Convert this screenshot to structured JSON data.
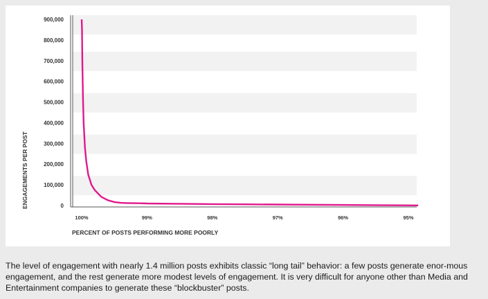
{
  "chart_data": {
    "type": "line",
    "title": "",
    "xlabel": "PERCENT OF POSTS PERFORMING MORE POORLY",
    "ylabel": "ENGAGEMENTS PER POST",
    "x_ticks": [
      "100%",
      "99%",
      "98%",
      "97%",
      "96%",
      "95%"
    ],
    "y_ticks": [
      "900,000",
      "800,000",
      "700,000",
      "600,000",
      "500,000",
      "400,000",
      "300,000",
      "200,000",
      "100,000",
      "0"
    ],
    "xlim": [
      100,
      94.85
    ],
    "ylim": [
      0,
      900000
    ],
    "grid": "alternating horizontal bands",
    "line_color": "#e0188c",
    "series": [
      {
        "x": [
          100,
          99.995,
          99.99,
          99.98,
          99.97,
          99.95,
          99.93,
          99.9,
          99.85,
          99.8,
          99.7,
          99.6,
          99.5,
          99.4,
          99.3,
          99.2,
          99.1,
          99.0,
          98.5,
          98.0,
          97.5,
          97.0,
          96.5,
          96.0,
          95.5,
          95.0,
          94.85
        ],
        "y": [
          900000,
          850000,
          700000,
          520000,
          400000,
          280000,
          215000,
          150000,
          100000,
          75000,
          42000,
          26000,
          17000,
          13000,
          12000,
          11500,
          11000,
          10000,
          8500,
          7000,
          6000,
          5000,
          4000,
          3000,
          2000,
          1000,
          500
        ]
      }
    ]
  },
  "caption": "The level of engagement with nearly 1.4 million posts exhibits classic “long tail” behavior: a few posts generate enor-mous engagement, and the rest generate more modest levels of engagement. It is very difficult for anyone other than Media and Entertainment companies to generate these “blockbuster” posts."
}
